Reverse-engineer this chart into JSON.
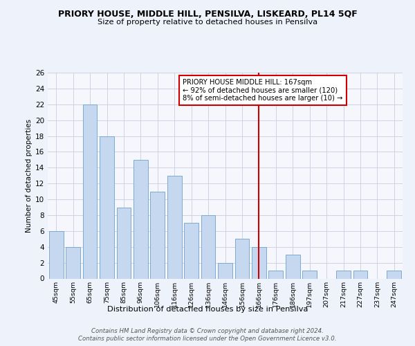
{
  "title": "PRIORY HOUSE, MIDDLE HILL, PENSILVA, LISKEARD, PL14 5QF",
  "subtitle": "Size of property relative to detached houses in Pensilva",
  "xlabel": "Distribution of detached houses by size in Pensilva",
  "ylabel": "Number of detached properties",
  "categories": [
    "45sqm",
    "55sqm",
    "65sqm",
    "75sqm",
    "85sqm",
    "96sqm",
    "106sqm",
    "116sqm",
    "126sqm",
    "136sqm",
    "146sqm",
    "156sqm",
    "166sqm",
    "176sqm",
    "186sqm",
    "197sqm",
    "207sqm",
    "217sqm",
    "227sqm",
    "237sqm",
    "247sqm"
  ],
  "values": [
    6,
    4,
    22,
    18,
    9,
    15,
    11,
    13,
    7,
    8,
    2,
    5,
    4,
    1,
    3,
    1,
    0,
    1,
    1,
    0,
    1
  ],
  "bar_color_main": "#c5d8f0",
  "bar_edge_color": "#7aaad0",
  "vline_index": 12,
  "vline_color": "#cc0000",
  "annotation_title": "PRIORY HOUSE MIDDLE HILL: 167sqm",
  "annotation_line1": "← 92% of detached houses are smaller (120)",
  "annotation_line2": "8% of semi-detached houses are larger (10) →",
  "annotation_box_color": "#cc0000",
  "ylim": [
    0,
    26
  ],
  "yticks": [
    0,
    2,
    4,
    6,
    8,
    10,
    12,
    14,
    16,
    18,
    20,
    22,
    24,
    26
  ],
  "footer_line1": "Contains HM Land Registry data © Crown copyright and database right 2024.",
  "footer_line2": "Contains public sector information licensed under the Open Government Licence v3.0.",
  "background_color": "#eef2fb",
  "plot_bg_color": "#f5f7fd",
  "grid_color": "#c8cde0"
}
